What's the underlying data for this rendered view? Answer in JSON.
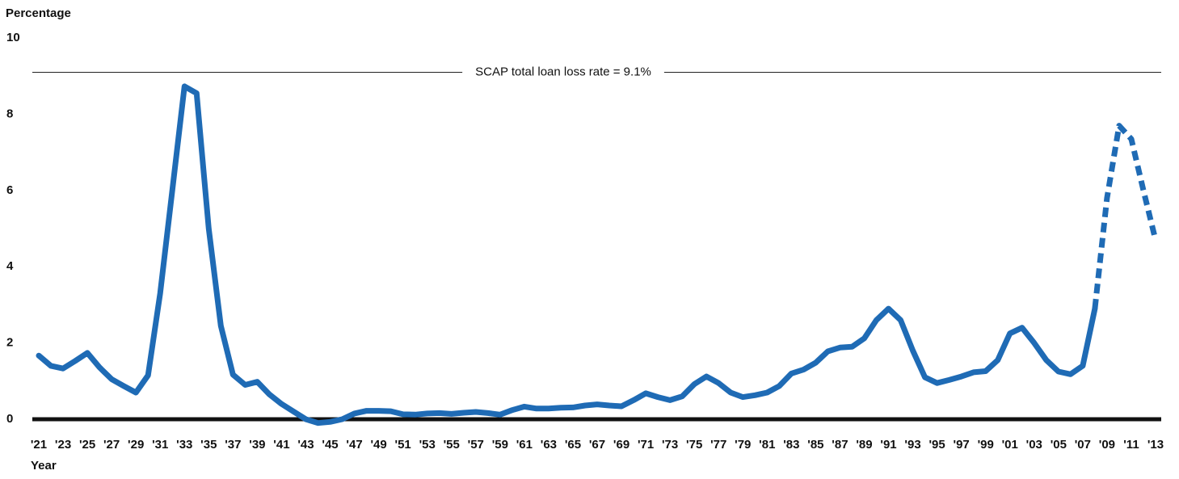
{
  "chart_data": {
    "type": "line",
    "y_label": "Percentage",
    "x_label": "Year",
    "categories": [
      "'21",
      null,
      "'23",
      null,
      "'25",
      null,
      "'27",
      null,
      "'29",
      null,
      "'31",
      null,
      "'33",
      null,
      "'35",
      null,
      "'37",
      null,
      "'39",
      null,
      "'41",
      null,
      "'43",
      null,
      "'45",
      null,
      "'47",
      null,
      "'49",
      null,
      "'51",
      null,
      "'53",
      null,
      "'55",
      null,
      "'57",
      null,
      "'59",
      null,
      "'61",
      null,
      "'63",
      null,
      "'65",
      null,
      "'67",
      null,
      "'69",
      null,
      "'71",
      null,
      "'73",
      null,
      "'75",
      null,
      "'77",
      null,
      "'79",
      null,
      "'81",
      null,
      "'83",
      null,
      "'85",
      null,
      "'87",
      null,
      "'89",
      null,
      "'91",
      null,
      "'93",
      null,
      "'95",
      null,
      "'97",
      null,
      "'99",
      null,
      "'01",
      null,
      "'03",
      null,
      "'05",
      null,
      "'07",
      null,
      "'09",
      null,
      "'11",
      null,
      "'13"
    ],
    "series": [
      {
        "color": "#1f6bb5",
        "values": [
          1.67,
          1.4,
          1.33,
          1.53,
          1.74,
          1.36,
          1.05,
          0.87,
          0.7,
          1.15,
          3.3,
          6.0,
          8.73,
          8.55,
          5.0,
          2.45,
          1.17,
          0.9,
          0.98,
          0.65,
          0.4,
          0.2,
          0.0,
          -0.1,
          -0.07,
          0.0,
          0.15,
          0.22,
          0.22,
          0.21,
          0.13,
          0.12,
          0.15,
          0.16,
          0.14,
          0.17,
          0.19,
          0.16,
          0.12,
          0.24,
          0.33,
          0.28,
          0.28,
          0.3,
          0.31,
          0.36,
          0.39,
          0.36,
          0.34,
          0.5,
          0.68,
          0.58,
          0.5,
          0.6,
          0.92,
          1.12,
          0.95,
          0.7,
          0.58,
          0.63,
          0.7,
          0.87,
          1.2,
          1.3,
          1.48,
          1.78,
          1.88,
          1.9,
          2.12,
          2.6,
          2.9,
          2.6,
          1.8,
          1.1,
          0.95,
          1.03,
          1.12,
          1.23,
          1.26,
          1.55,
          2.25,
          2.4,
          2.0,
          1.55,
          1.25,
          1.18,
          1.4,
          2.9,
          null,
          null,
          null,
          null,
          null
        ]
      },
      {
        "color": "#1f6bb5",
        "dashed": true,
        "values": [
          null,
          null,
          null,
          null,
          null,
          null,
          null,
          null,
          null,
          null,
          null,
          null,
          null,
          null,
          null,
          null,
          null,
          null,
          null,
          null,
          null,
          null,
          null,
          null,
          null,
          null,
          null,
          null,
          null,
          null,
          null,
          null,
          null,
          null,
          null,
          null,
          null,
          null,
          null,
          null,
          null,
          null,
          null,
          null,
          null,
          null,
          null,
          null,
          null,
          null,
          null,
          null,
          null,
          null,
          null,
          null,
          null,
          null,
          null,
          null,
          null,
          null,
          null,
          null,
          null,
          null,
          null,
          null,
          null,
          null,
          null,
          null,
          null,
          null,
          null,
          null,
          null,
          null,
          null,
          null,
          null,
          null,
          null,
          null,
          null,
          null,
          null,
          2.9,
          5.8,
          7.7,
          7.35,
          6.0,
          4.7
        ]
      }
    ],
    "reference": {
      "value": 9.1,
      "label": "SCAP total loan loss rate = 9.1%"
    },
    "ylim": [
      0,
      10
    ],
    "yticks": [
      0,
      2,
      4,
      6,
      8,
      10
    ],
    "grid": false
  }
}
